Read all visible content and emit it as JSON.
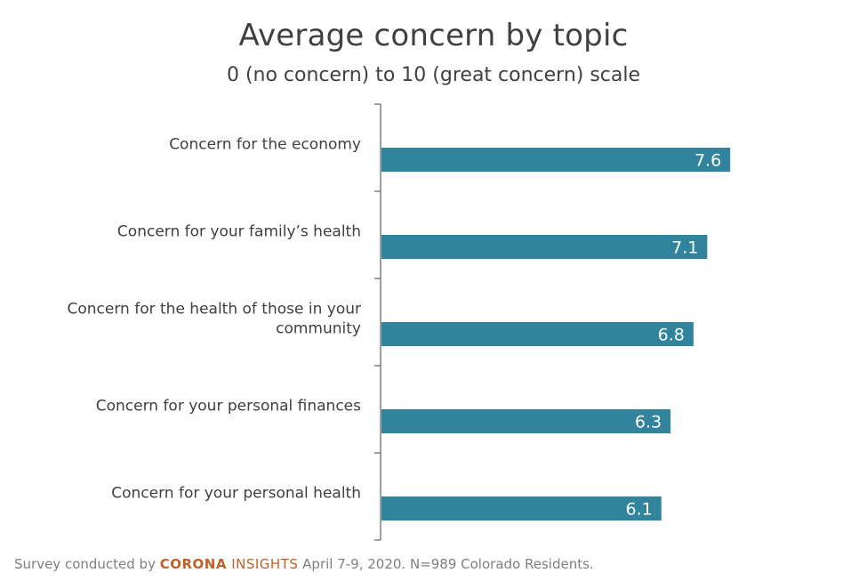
{
  "chart_data": {
    "type": "bar",
    "orientation": "horizontal",
    "title": "Average concern by topic",
    "subtitle": "0 (no concern) to 10 (great concern) scale",
    "categories": [
      [
        "Concern for the economy"
      ],
      [
        "Concern for your family’s health"
      ],
      [
        "Concern for the health of those in your",
        "community"
      ],
      [
        "Concern for your personal finances"
      ],
      [
        "Concern for your personal health"
      ]
    ],
    "values": [
      7.6,
      7.1,
      6.8,
      6.3,
      6.1
    ],
    "data_labels": [
      "7.6",
      "7.1",
      "6.8",
      "6.3",
      "6.1"
    ],
    "xlim": [
      0,
      10
    ],
    "bar_color": "#31849b",
    "grid": false
  },
  "footer": {
    "prefix": "Survey conducted by ",
    "brand_part1": "CORONA",
    "brand_part2": " INSIGHTS",
    "suffix": " April 7-9, 2020. N=989 Colorado Residents."
  }
}
